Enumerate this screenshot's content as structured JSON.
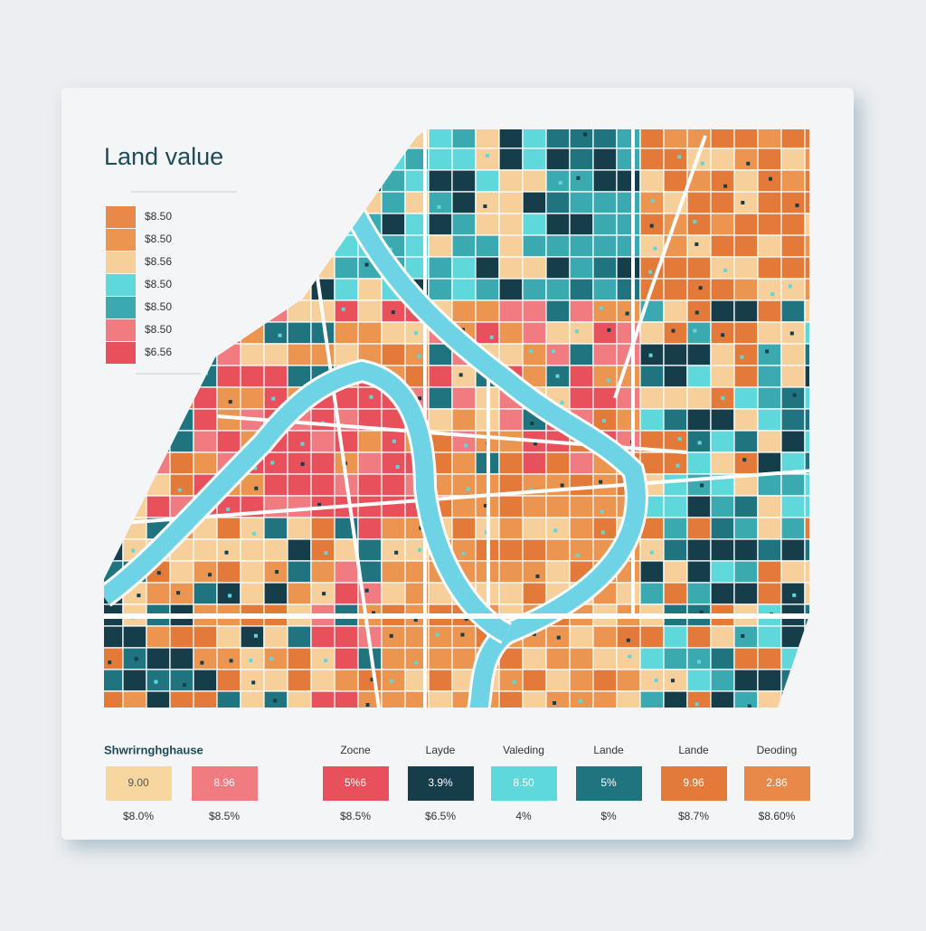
{
  "title": "Land value",
  "legend": {
    "items": [
      "$8.50",
      "$8.50",
      "$8.56",
      "$8.50",
      "$8.50",
      "$8.50",
      "$6.56"
    ]
  },
  "bottom": {
    "heading": "Shwrirnghghause",
    "labels": [
      "Zocne",
      "Layde",
      "Valeding",
      "Lande",
      "Lande",
      "Deoding"
    ],
    "swatches": [
      "9.00",
      "8.96",
      "5%6",
      "3.9%",
      "8.50",
      "5%",
      "9.96",
      "2.86"
    ],
    "captions": [
      "$8.0%",
      "$8.5%",
      "$8.5%",
      "$6.5%",
      "4%",
      "$%",
      "$8.7%",
      "$8.60%"
    ]
  }
}
